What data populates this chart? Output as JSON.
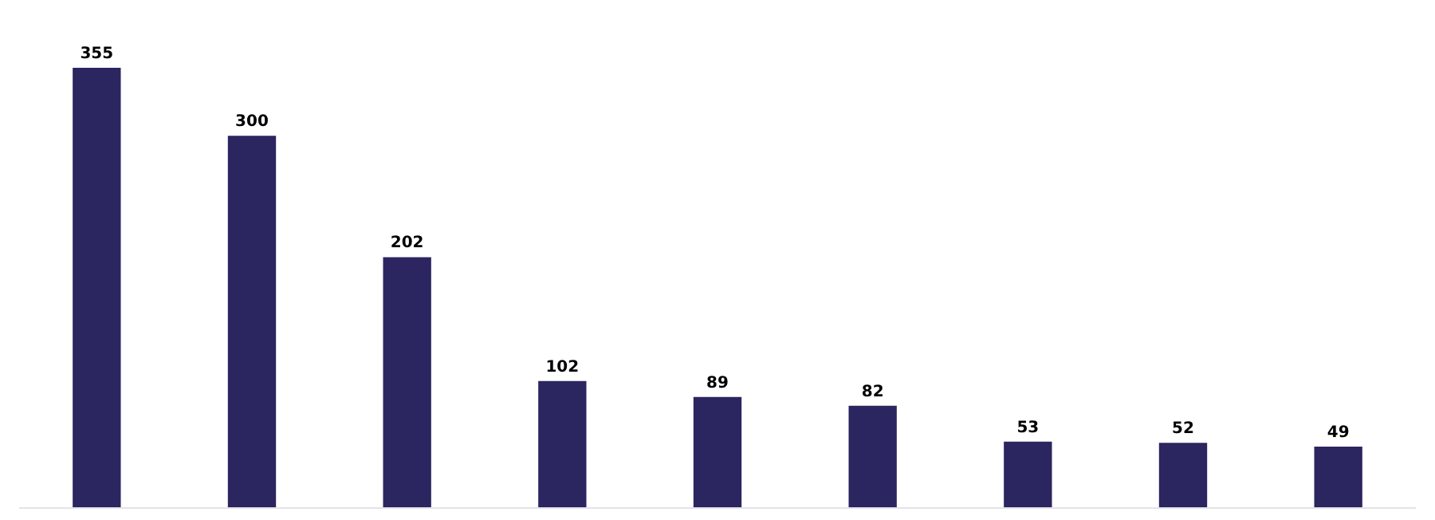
{
  "chart_data": {
    "type": "bar",
    "categories": [
      null,
      null,
      null,
      null,
      null,
      null,
      null,
      null,
      null
    ],
    "values": [
      355,
      300,
      202,
      102,
      89,
      82,
      53,
      52,
      49
    ],
    "color": "#2b2560",
    "data_labels": true
  }
}
